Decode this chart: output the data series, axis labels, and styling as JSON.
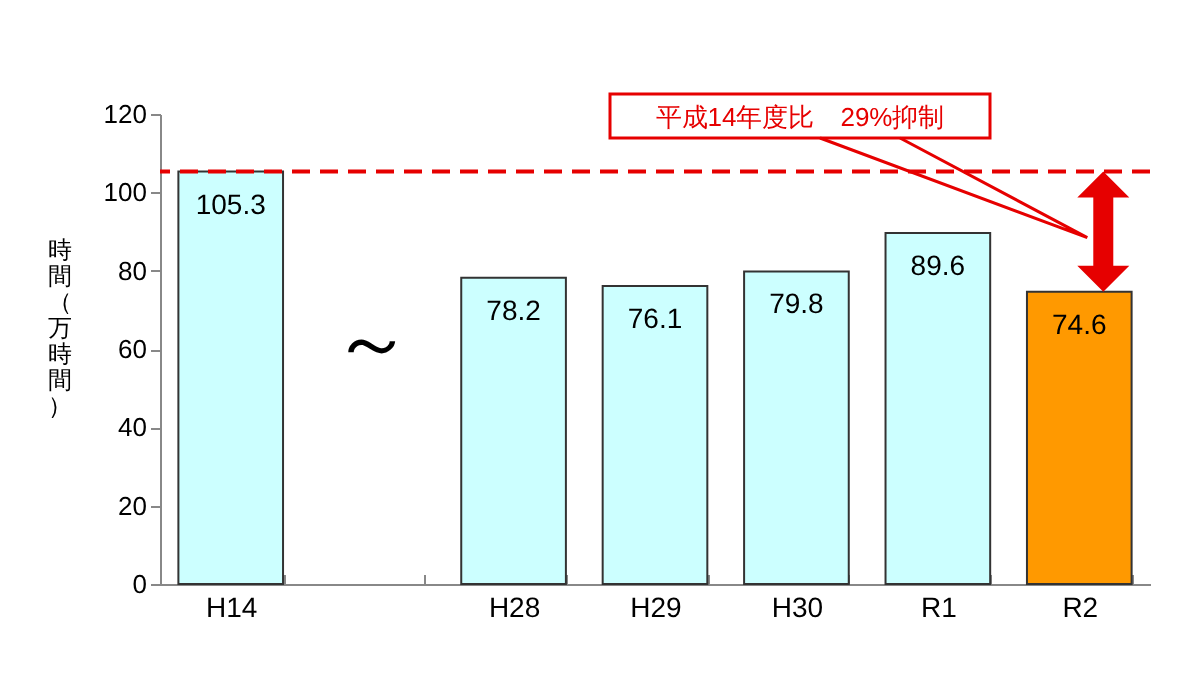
{
  "chart_data": {
    "type": "bar",
    "ylabel": "時間（万時間）",
    "categories": [
      "H14",
      null,
      "H28",
      "H29",
      "H30",
      "R1",
      "R2"
    ],
    "values": [
      105.3,
      null,
      78.2,
      76.1,
      79.8,
      89.6,
      74.6
    ],
    "colors": [
      "#ccffff",
      "#ccffff",
      "#ccffff",
      "#ccffff",
      "#ccffff",
      "#ccffff",
      "#ff9900"
    ],
    "ylim": [
      0,
      120
    ],
    "yticks": [
      0,
      20,
      40,
      60,
      80,
      100,
      120
    ],
    "grid": false,
    "legend": false,
    "data_labels": true,
    "ref_lines": [
      {
        "axis": "y",
        "value": 105.3,
        "label": null,
        "color": "#e60000",
        "line_style": "dashed"
      }
    ],
    "annotations": [
      "平成14年度比　29%抑制",
      "～"
    ]
  }
}
